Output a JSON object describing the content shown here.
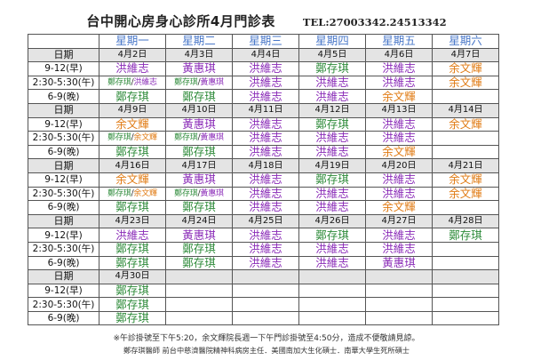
{
  "title": "台中開心房身心診所4月門診表",
  "tel": "TEL:27003342.24513342",
  "weekdays": [
    "星期一",
    "星期二",
    "星期三",
    "星期四",
    "星期五",
    "星期六"
  ],
  "date_label": "日期",
  "slots": [
    "9-12(早)",
    "2:30-5:30(午)",
    "6-9(晚)"
  ],
  "doctor_colors": {
    "洪維志": "#8b2cb8",
    "黃惠琪": "#8b2cb8",
    "鄭存琪": "#2e8b3a",
    "余文輝": "#e07a12"
  },
  "weeks": [
    {
      "dates": [
        "4月2日",
        "4月3日",
        "4月4日",
        "4月5日",
        "4月6日",
        "4月7日"
      ],
      "rows": [
        [
          [
            "洪維志"
          ],
          [
            "黃惠琪"
          ],
          [
            "洪維志"
          ],
          [
            "鄭存琪"
          ],
          [
            "洪維志"
          ],
          [
            "余文輝"
          ]
        ],
        [
          [
            "鄭存琪",
            "洪維志"
          ],
          [
            "鄭存琪",
            "黃惠琪"
          ],
          [
            "洪維志"
          ],
          [
            "洪維志"
          ],
          [
            "洪維志"
          ],
          [
            "余文輝"
          ]
        ],
        [
          [
            "鄭存琪"
          ],
          [
            "鄭存琪"
          ],
          [
            "洪維志"
          ],
          [
            "洪維志"
          ],
          [
            "余文輝"
          ],
          []
        ]
      ]
    },
    {
      "dates": [
        "4月9日",
        "4月10日",
        "4月11日",
        "4月12日",
        "4月13日",
        "4月14日"
      ],
      "rows": [
        [
          [
            "余文輝"
          ],
          [
            "黃惠琪"
          ],
          [
            "洪維志"
          ],
          [
            "鄭存琪"
          ],
          [
            "洪維志"
          ],
          [
            "余文輝"
          ]
        ],
        [
          [
            "鄭存琪",
            "余文輝"
          ],
          [
            "鄭存琪",
            "黃惠琪"
          ],
          [
            "洪維志"
          ],
          [
            "洪維志"
          ],
          [
            "洪維志"
          ],
          []
        ],
        [
          [
            "鄭存琪"
          ],
          [
            "鄭存琪"
          ],
          [
            "洪維志"
          ],
          [
            "洪維志"
          ],
          [
            "余文輝"
          ],
          []
        ]
      ]
    },
    {
      "dates": [
        "4月16日",
        "4月17日",
        "4月18日",
        "4月19日",
        "4月20日",
        "4月21日"
      ],
      "rows": [
        [
          [
            "余文輝"
          ],
          [
            "黃惠琪"
          ],
          [
            "洪維志"
          ],
          [
            "鄭存琪"
          ],
          [
            "洪維志"
          ],
          [
            "余文輝"
          ]
        ],
        [
          [
            "鄭存琪",
            "余文輝"
          ],
          [
            "鄭存琪",
            "黃惠琪"
          ],
          [
            "洪維志"
          ],
          [
            "洪維志"
          ],
          [
            "洪維志"
          ],
          [
            "余文輝"
          ]
        ],
        [
          [
            "鄭存琪"
          ],
          [
            "鄭存琪"
          ],
          [
            "洪維志"
          ],
          [
            "洪維志"
          ],
          [
            "余文輝"
          ],
          []
        ]
      ]
    },
    {
      "dates": [
        "4月23日",
        "4月24日",
        "4月25日",
        "4月26日",
        "4月27日",
        "4月28日"
      ],
      "rows": [
        [
          [
            "洪維志"
          ],
          [
            "黃惠琪"
          ],
          [
            "洪維志"
          ],
          [
            "鄭存琪"
          ],
          [
            "洪維志"
          ],
          [
            "鄭存琪"
          ]
        ],
        [
          [
            "鄭存琪"
          ],
          [
            "鄭存琪"
          ],
          [
            "洪維志"
          ],
          [
            "洪維志"
          ],
          [
            "洪維志"
          ],
          []
        ],
        [
          [
            "鄭存琪"
          ],
          [
            "鄭存琪"
          ],
          [
            "洪維志"
          ],
          [
            "洪維志"
          ],
          [
            "黃惠琪"
          ],
          []
        ]
      ]
    },
    {
      "dates": [
        "4月30日",
        "",
        "",
        "",
        "",
        ""
      ],
      "rows": [
        [
          [
            "鄭存琪"
          ],
          [],
          [],
          [],
          [],
          []
        ],
        [
          [
            "鄭存琪"
          ],
          [],
          [],
          [],
          [],
          []
        ],
        [
          [
            "鄭存琪"
          ],
          [],
          [],
          [],
          [],
          []
        ]
      ]
    }
  ],
  "notes": [
    "※午診掛號至下午5:20，余文輝院長週一下午門診掛號至4:50分，造成不便敬請見諒。",
    "鄭存琪醫師    前台中慈濟醫院精神科病房主任．美國南加大生化碩士．南華大學生死所碩士"
  ]
}
